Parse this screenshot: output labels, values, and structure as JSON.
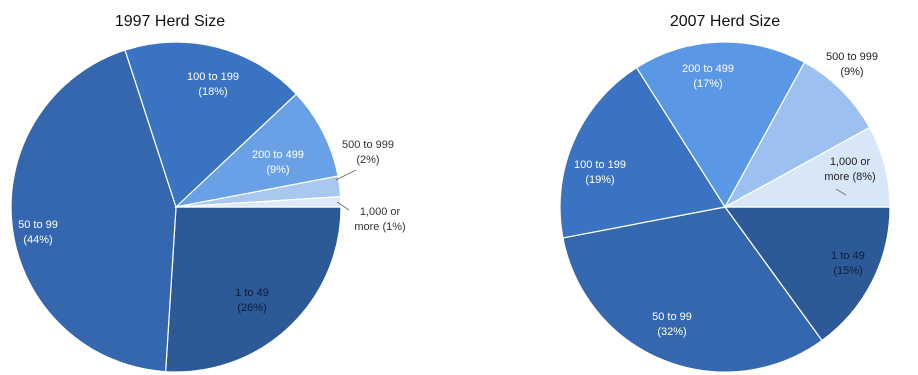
{
  "chart_data": [
    {
      "type": "pie",
      "title": "1997 Herd Size",
      "slices": [
        {
          "label": "1 to 49",
          "pct_text": "(26%)",
          "value": 26,
          "color": "#2d5a97",
          "label_color": "#0b1d3a"
        },
        {
          "label": "50 to 99",
          "pct_text": "(44%)",
          "value": 44,
          "color": "#3467ad",
          "label_color": "#ffffff"
        },
        {
          "label": "100 to 199",
          "pct_text": "(18%)",
          "value": 18,
          "color": "#3a73c2",
          "label_color": "#ffffff"
        },
        {
          "label": "200 to 499",
          "pct_text": "(9%)",
          "value": 9,
          "color": "#6aa1e6",
          "label_color": "#ffffff"
        },
        {
          "label": "500 to 999",
          "pct_text": "(2%)",
          "value": 2,
          "color": "#a8c8f0",
          "label_color": "#333333"
        },
        {
          "label": "1,000 or",
          "label2": "more (1%)",
          "value": 1,
          "color": "#dde9f8",
          "label_color": "#333333"
        }
      ]
    },
    {
      "type": "pie",
      "title": "2007 Herd Size",
      "slices": [
        {
          "label": "1 to 49",
          "pct_text": "(15%)",
          "value": 15,
          "color": "#2d5a97",
          "label_color": "#0b1d3a"
        },
        {
          "label": "50 to 99",
          "pct_text": "(32%)",
          "value": 32,
          "color": "#3467ad",
          "label_color": "#ffffff"
        },
        {
          "label": "100 to 199",
          "pct_text": "(19%)",
          "value": 19,
          "color": "#3a73c2",
          "label_color": "#ffffff"
        },
        {
          "label": "200 to 499",
          "pct_text": "(17%)",
          "value": 17,
          "color": "#5a98e6",
          "label_color": "#ffffff"
        },
        {
          "label": "500 to 999",
          "pct_text": "(9%)",
          "value": 9,
          "color": "#9cc1f0",
          "label_color": "#222222"
        },
        {
          "label": "1,000 or",
          "label2": "more (8%)",
          "value": 8,
          "color": "#d8e7f8",
          "label_color": "#222222"
        }
      ]
    }
  ]
}
